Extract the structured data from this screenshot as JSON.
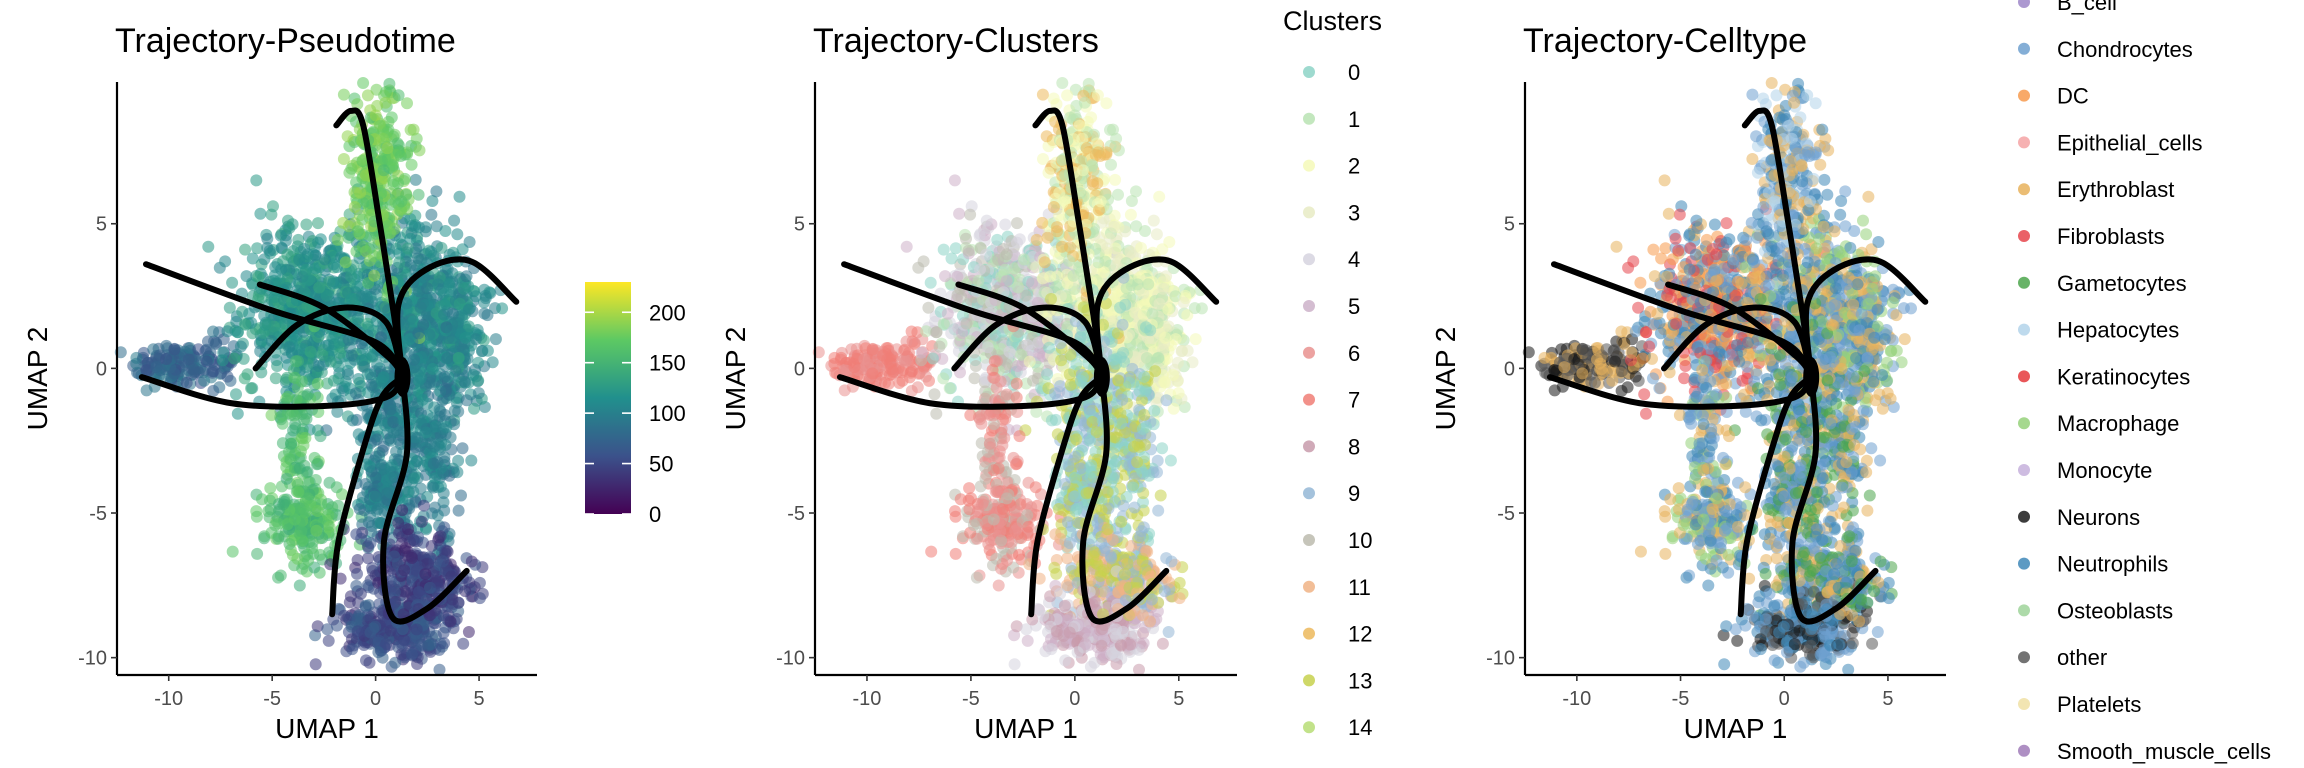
{
  "chart_data": [
    {
      "type": "scatter",
      "title": "Trajectory-Pseudotime",
      "xlabel": "UMAP 1",
      "ylabel": "UMAP 2",
      "xlim": [
        -12.5,
        7.8
      ],
      "ylim": [
        -10.6,
        9.9
      ],
      "x_ticks": [
        -10,
        -5,
        0,
        5
      ],
      "y_ticks": [
        -10,
        -5,
        0,
        5
      ],
      "color_mode": "continuous",
      "colorbar": {
        "ticks": [
          0,
          50,
          100,
          150,
          200
        ],
        "range": [
          0,
          230
        ],
        "palette": [
          "#440154",
          "#3b528b",
          "#21908d",
          "#5dc963",
          "#fde725"
        ]
      },
      "legend_position": "right",
      "grid": false
    },
    {
      "type": "scatter",
      "title": "Trajectory-Clusters",
      "xlabel": "UMAP 1",
      "ylabel": "UMAP 2",
      "xlim": [
        -12.5,
        7.8
      ],
      "ylim": [
        -10.6,
        9.9
      ],
      "x_ticks": [
        -10,
        -5,
        0,
        5
      ],
      "y_ticks": [
        -10,
        -5,
        0,
        5
      ],
      "color_mode": "clusters",
      "legend_title": "Clusters",
      "legend_position": "right",
      "grid": false,
      "series": [
        {
          "name": "0",
          "color": "#8dd3c7"
        },
        {
          "name": "1",
          "color": "#b9e3b3"
        },
        {
          "name": "2",
          "color": "#f4f9b8"
        },
        {
          "name": "3",
          "color": "#e7ebc4"
        },
        {
          "name": "4",
          "color": "#d6d4df"
        },
        {
          "name": "5",
          "color": "#cdb1c9"
        },
        {
          "name": "6",
          "color": "#e9928f"
        },
        {
          "name": "7",
          "color": "#f07e76"
        },
        {
          "name": "8",
          "color": "#c89bac"
        },
        {
          "name": "9",
          "color": "#94b7d6"
        },
        {
          "name": "10",
          "color": "#bcbbae"
        },
        {
          "name": "11",
          "color": "#f0b385"
        },
        {
          "name": "12",
          "color": "#ecb95c"
        },
        {
          "name": "13",
          "color": "#c7d14d"
        },
        {
          "name": "14",
          "color": "#b7dd76"
        }
      ]
    },
    {
      "type": "scatter",
      "title": "Trajectory-Celltype",
      "xlabel": "UMAP 1",
      "ylabel": "UMAP 2",
      "xlim": [
        -12.5,
        7.8
      ],
      "ylim": [
        -10.6,
        9.9
      ],
      "x_ticks": [
        -10,
        -5,
        0,
        5
      ],
      "y_ticks": [
        -10,
        -5,
        0,
        5
      ],
      "color_mode": "celltype",
      "legend_position": "right",
      "grid": false,
      "series": [
        {
          "name": "B_cell",
          "color": "#9e86c8"
        },
        {
          "name": "Chondrocytes",
          "color": "#6fa0cf"
        },
        {
          "name": "DC",
          "color": "#f79a4d"
        },
        {
          "name": "Epithelial_cells",
          "color": "#f5a3a5"
        },
        {
          "name": "Erythroblast",
          "color": "#e8b25c"
        },
        {
          "name": "Fibroblasts",
          "color": "#e6454c"
        },
        {
          "name": "Gametocytes",
          "color": "#4ca64c"
        },
        {
          "name": "Hepatocytes",
          "color": "#b3d4ea"
        },
        {
          "name": "Keratinocytes",
          "color": "#e5393c"
        },
        {
          "name": "Macrophage",
          "color": "#95d17a"
        },
        {
          "name": "Monocyte",
          "color": "#c5b0dc"
        },
        {
          "name": "Neurons",
          "color": "#1a1a1a"
        },
        {
          "name": "Neutrophils",
          "color": "#3f88b8"
        },
        {
          "name": "Osteoblasts",
          "color": "#9fd49a"
        },
        {
          "name": "other",
          "color": "#5a5a5a"
        },
        {
          "name": "Platelets",
          "color": "#f0e0a4"
        },
        {
          "name": "Smooth_muscle_cells",
          "color": "#a07bb8"
        }
      ]
    }
  ]
}
